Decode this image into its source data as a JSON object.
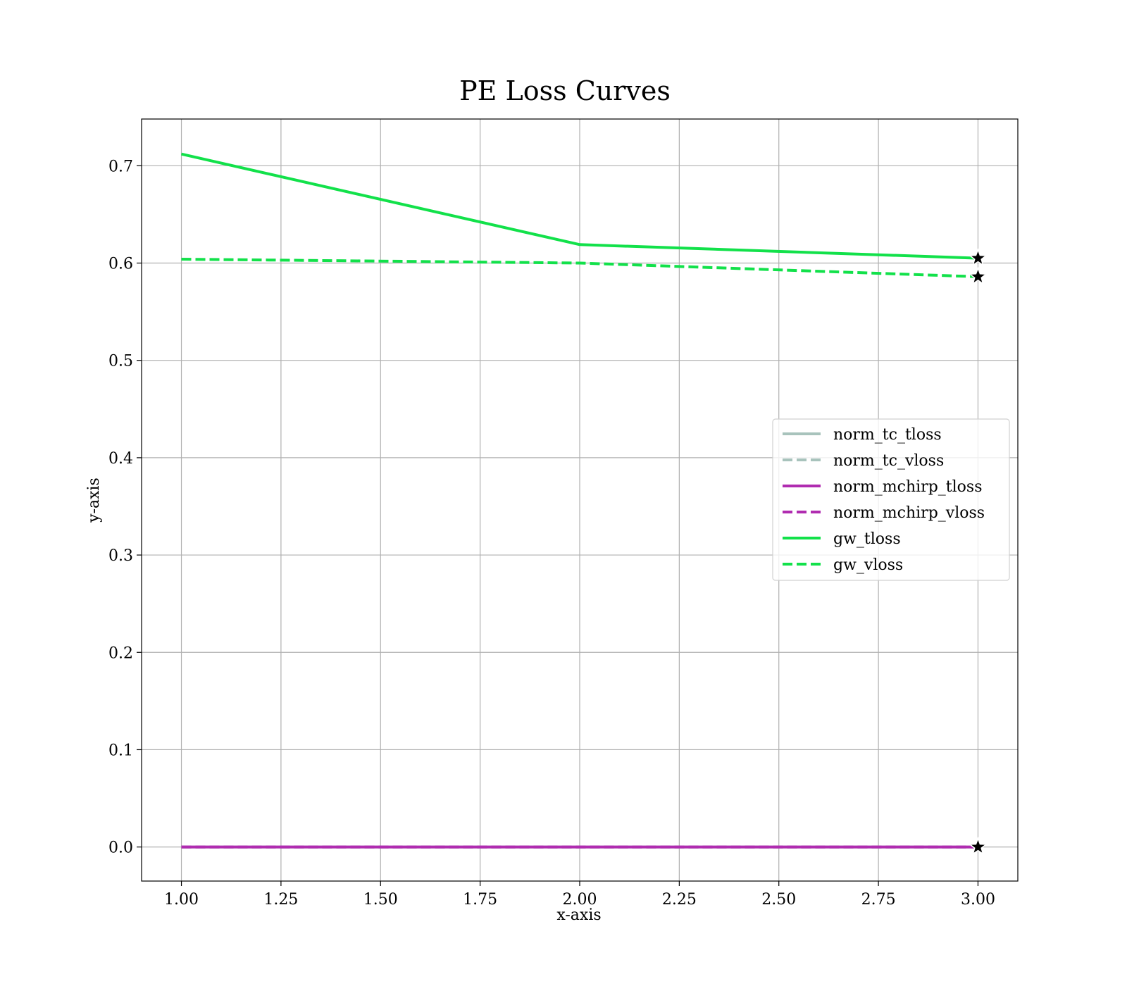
{
  "chart_data": {
    "type": "line",
    "title": "PE Loss Curves",
    "xlabel": "x-axis",
    "ylabel": "y-axis",
    "xlim": [
      0.9,
      3.1
    ],
    "ylim": [
      -0.035,
      0.748
    ],
    "xticks": [
      1.0,
      1.25,
      1.5,
      1.75,
      2.0,
      2.25,
      2.5,
      2.75,
      3.0
    ],
    "xtick_labels": [
      "1.00",
      "1.25",
      "1.50",
      "1.75",
      "2.00",
      "2.25",
      "2.50",
      "2.75",
      "3.00"
    ],
    "yticks": [
      0.0,
      0.1,
      0.2,
      0.3,
      0.4,
      0.5,
      0.6,
      0.7
    ],
    "ytick_labels": [
      "0.0",
      "0.1",
      "0.2",
      "0.3",
      "0.4",
      "0.5",
      "0.6",
      "0.7"
    ],
    "grid": true,
    "legend_position": "center-right",
    "x": [
      1,
      2,
      3
    ],
    "series": [
      {
        "name": "norm_tc_tloss",
        "values": [
          0.0,
          0.0,
          0.0
        ],
        "color": "#a8c3bc",
        "dashed": false,
        "best_marker": true
      },
      {
        "name": "norm_tc_vloss",
        "values": [
          0.0,
          0.0,
          0.0
        ],
        "color": "#a8c3bc",
        "dashed": true,
        "best_marker": true
      },
      {
        "name": "norm_mchirp_tloss",
        "values": [
          0.0,
          0.0,
          0.0
        ],
        "color": "#b02cb0",
        "dashed": false,
        "best_marker": true
      },
      {
        "name": "norm_mchirp_vloss",
        "values": [
          0.0,
          0.0,
          0.0
        ],
        "color": "#b02cb0",
        "dashed": true,
        "best_marker": true
      },
      {
        "name": "gw_tloss",
        "values": [
          0.712,
          0.619,
          0.605
        ],
        "color": "#12e14a",
        "dashed": false,
        "best_marker": true
      },
      {
        "name": "gw_vloss",
        "values": [
          0.604,
          0.6,
          0.586
        ],
        "color": "#12e14a",
        "dashed": true,
        "best_marker": true
      }
    ],
    "marker": "star",
    "marker_color": "#000000"
  }
}
